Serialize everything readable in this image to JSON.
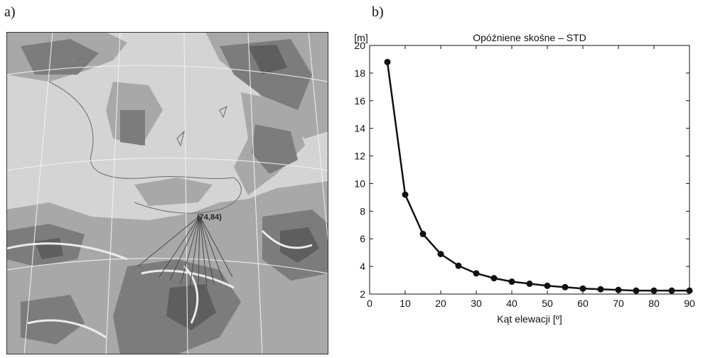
{
  "panels": {
    "a_label": "a)",
    "b_label": "b)"
  },
  "map": {
    "point_label": "(74,84)",
    "fill_colors": [
      "#d4d4d4",
      "#a8a8a8",
      "#7c7c7c",
      "#5e5e5e"
    ]
  },
  "chart_data": {
    "type": "line",
    "title": "Opóźniene skośne – STD",
    "xlabel": "Kąt elewacji [º]",
    "ylabel": "[m]",
    "xlim": [
      0,
      90
    ],
    "ylim": [
      2,
      20
    ],
    "xticks": [
      0,
      10,
      20,
      30,
      40,
      50,
      60,
      70,
      80,
      90
    ],
    "yticks": [
      2,
      4,
      6,
      8,
      10,
      12,
      14,
      16,
      18,
      20
    ],
    "grid": false,
    "series": [
      {
        "x": [
          5,
          10,
          15,
          20,
          25,
          30,
          35,
          40,
          45,
          50,
          55,
          60,
          65,
          70,
          75,
          80,
          85,
          90
        ],
        "values": [
          18.8,
          9.2,
          6.35,
          4.9,
          4.05,
          3.5,
          3.15,
          2.9,
          2.75,
          2.6,
          2.5,
          2.4,
          2.35,
          2.3,
          2.25,
          2.25,
          2.25,
          2.25
        ]
      }
    ],
    "color": "#111111"
  }
}
